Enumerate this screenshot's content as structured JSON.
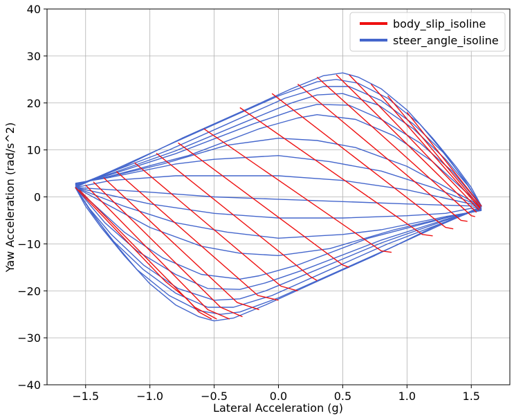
{
  "chart_data": {
    "type": "line",
    "title": "",
    "xlabel": "Lateral Acceleration (g)",
    "ylabel": "Yaw Acceleration (rad/s^2)",
    "xlim": [
      -1.8,
      1.8
    ],
    "ylim": [
      -40,
      40
    ],
    "xticks": [
      -1.5,
      -1.0,
      -0.5,
      0.0,
      0.5,
      1.0,
      1.5
    ],
    "xtick_labels": [
      "−1.5",
      "−1.0",
      "−0.5",
      "0.0",
      "0.5",
      "1.0",
      "1.5"
    ],
    "yticks": [
      -40,
      -30,
      -20,
      -10,
      0,
      10,
      20,
      30,
      40
    ],
    "ytick_labels": [
      "−40",
      "−30",
      "−20",
      "−10",
      "0",
      "10",
      "20",
      "30",
      "40"
    ],
    "grid": true,
    "legend": {
      "placement": "top-right",
      "entries": [
        {
          "name": "body_slip_isoline",
          "color": "#ee1111"
        },
        {
          "name": "steer_angle_isoline",
          "color": "#4466cc"
        }
      ]
    },
    "series": [
      {
        "name": "body_slip_isoline",
        "color": "#ee1111",
        "lines": [
          [
            [
              -1.58,
              2.0
            ],
            [
              -0.88,
              -18.0
            ],
            [
              -0.72,
              -21.5
            ],
            [
              -0.62,
              -24.5
            ],
            [
              -0.52,
              -26.0
            ]
          ],
          [
            [
              -1.55,
              1.5
            ],
            [
              -0.65,
              -23.5
            ],
            [
              -0.48,
              -26.0
            ]
          ],
          [
            [
              -1.5,
              2.5
            ],
            [
              -0.55,
              -24.0
            ],
            [
              -0.38,
              -26.0
            ]
          ],
          [
            [
              -1.44,
              3.2
            ],
            [
              -0.45,
              -23.5
            ],
            [
              -0.28,
              -25.5
            ]
          ],
          [
            [
              -1.36,
              4.1
            ],
            [
              -0.32,
              -22.5
            ],
            [
              -0.15,
              -24.0
            ]
          ],
          [
            [
              -1.26,
              5.4
            ],
            [
              -0.16,
              -21.0
            ],
            [
              0.0,
              -22.0
            ]
          ],
          [
            [
              -1.12,
              7.3
            ],
            [
              0.02,
              -19.0
            ],
            [
              0.15,
              -20.0
            ]
          ],
          [
            [
              -0.95,
              9.3
            ],
            [
              0.25,
              -17.0
            ],
            [
              0.3,
              -17.8
            ]
          ],
          [
            [
              -0.78,
              11.5
            ],
            [
              0.5,
              -14.5
            ],
            [
              0.55,
              -15.0
            ]
          ],
          [
            [
              -0.58,
              14.5
            ],
            [
              0.8,
              -11.5
            ],
            [
              0.88,
              -11.8
            ]
          ],
          [
            [
              -0.3,
              19.0
            ],
            [
              1.12,
              -8.0
            ],
            [
              1.2,
              -8.3
            ]
          ],
          [
            [
              -0.05,
              22.0
            ],
            [
              1.3,
              -6.5
            ],
            [
              1.36,
              -6.8
            ]
          ],
          [
            [
              0.15,
              24.0
            ],
            [
              1.42,
              -5.0
            ],
            [
              1.47,
              -5.2
            ]
          ],
          [
            [
              0.3,
              25.5
            ],
            [
              1.5,
              -4.0
            ],
            [
              1.53,
              -4.2
            ]
          ],
          [
            [
              0.45,
              26.0
            ],
            [
              1.54,
              -3.3
            ]
          ],
          [
            [
              0.55,
              26.0
            ],
            [
              1.56,
              -2.8
            ]
          ],
          [
            [
              0.72,
              24.0
            ],
            [
              1.57,
              -2.5
            ]
          ],
          [
            [
              0.85,
              21.5
            ],
            [
              1.57,
              -2.2
            ]
          ],
          [
            [
              1.0,
              18.0
            ],
            [
              1.58,
              -2.0
            ]
          ]
        ]
      },
      {
        "name": "steer_angle_isoline",
        "color": "#4466cc",
        "lines": [
          [
            [
              -1.58,
              2.0
            ],
            [
              -1.5,
              3.0
            ],
            [
              -1.2,
              6.5
            ],
            [
              -0.75,
              12.5
            ],
            [
              -0.3,
              18.0
            ],
            [
              0.1,
              23.0
            ],
            [
              0.35,
              25.8
            ],
            [
              0.5,
              26.4
            ],
            [
              0.62,
              25.5
            ],
            [
              0.8,
              23.0
            ],
            [
              1.0,
              18.5
            ],
            [
              1.2,
              12.5
            ],
            [
              1.38,
              6.5
            ],
            [
              1.5,
              2.0
            ],
            [
              1.58,
              -2.0
            ]
          ],
          [
            [
              -1.58,
              2.2
            ],
            [
              -1.3,
              5.5
            ],
            [
              -0.9,
              10.5
            ],
            [
              -0.45,
              16.0
            ],
            [
              0.0,
              21.5
            ],
            [
              0.3,
              24.5
            ],
            [
              0.45,
              25.0
            ],
            [
              0.62,
              24.2
            ],
            [
              0.85,
              21.0
            ],
            [
              1.1,
              15.5
            ],
            [
              1.3,
              9.0
            ],
            [
              1.46,
              3.0
            ],
            [
              1.58,
              -2.0
            ]
          ],
          [
            [
              -1.58,
              2.4
            ],
            [
              -1.3,
              5.3
            ],
            [
              -0.85,
              10.0
            ],
            [
              -0.4,
              15.5
            ],
            [
              0.05,
              21.0
            ],
            [
              0.35,
              23.5
            ],
            [
              0.55,
              23.5
            ],
            [
              0.8,
              20.5
            ],
            [
              1.05,
              15.5
            ],
            [
              1.28,
              9.5
            ],
            [
              1.45,
              3.5
            ],
            [
              1.58,
              -2.0
            ]
          ],
          [
            [
              -1.58,
              2.5
            ],
            [
              -1.3,
              5.0
            ],
            [
              -0.8,
              9.8
            ],
            [
              -0.3,
              15.5
            ],
            [
              0.1,
              20.0
            ],
            [
              0.3,
              21.7
            ],
            [
              0.5,
              22.0
            ],
            [
              0.78,
              19.5
            ],
            [
              1.05,
              14.5
            ],
            [
              1.3,
              8.0
            ],
            [
              1.47,
              2.5
            ],
            [
              1.58,
              -2.0
            ]
          ],
          [
            [
              -1.58,
              2.6
            ],
            [
              -1.3,
              4.8
            ],
            [
              -0.8,
              9.2
            ],
            [
              -0.2,
              15.5
            ],
            [
              0.1,
              18.3
            ],
            [
              0.3,
              19.7
            ],
            [
              0.55,
              19.5
            ],
            [
              0.8,
              16.5
            ],
            [
              1.1,
              11.5
            ],
            [
              1.35,
              5.5
            ],
            [
              1.58,
              -2.0
            ]
          ],
          [
            [
              -1.58,
              2.7
            ],
            [
              -1.3,
              4.5
            ],
            [
              -0.7,
              8.8
            ],
            [
              -0.15,
              14.5
            ],
            [
              0.15,
              16.8
            ],
            [
              0.3,
              17.5
            ],
            [
              0.6,
              16.5
            ],
            [
              0.9,
              13.0
            ],
            [
              1.2,
              7.5
            ],
            [
              1.58,
              -2.0
            ]
          ],
          [
            [
              -1.58,
              2.8
            ],
            [
              -1.3,
              4.4
            ],
            [
              -0.9,
              7.0
            ],
            [
              -0.4,
              11.0
            ],
            [
              0.0,
              12.5
            ],
            [
              0.3,
              12.0
            ],
            [
              0.6,
              10.5
            ],
            [
              1.0,
              6.5
            ],
            [
              1.58,
              -2.0
            ]
          ],
          [
            [
              -1.58,
              2.9
            ],
            [
              -1.3,
              4.2
            ],
            [
              -0.8,
              7.0
            ],
            [
              -0.5,
              8.0
            ],
            [
              0.0,
              8.8
            ],
            [
              0.4,
              7.5
            ],
            [
              0.8,
              5.5
            ],
            [
              1.2,
              2.0
            ],
            [
              1.58,
              -2.0
            ]
          ],
          [
            [
              -1.58,
              2.0
            ],
            [
              -1.3,
              3.5
            ],
            [
              -0.8,
              4.5
            ],
            [
              0.0,
              4.5
            ],
            [
              0.5,
              3.5
            ],
            [
              1.0,
              1.5
            ],
            [
              1.58,
              -2.0
            ]
          ],
          [
            [
              -1.58,
              2.0
            ],
            [
              -1.0,
              1.0
            ],
            [
              -0.5,
              0.0
            ],
            [
              0.0,
              -0.5
            ],
            [
              0.5,
              -1.0
            ],
            [
              1.0,
              -1.5
            ],
            [
              1.58,
              -2.0
            ]
          ],
          [
            [
              -1.58,
              2.0
            ],
            [
              -1.0,
              -1.5
            ],
            [
              -0.5,
              -3.5
            ],
            [
              0.0,
              -4.5
            ],
            [
              0.5,
              -4.5
            ],
            [
              1.0,
              -4.0
            ],
            [
              1.3,
              -3.5
            ],
            [
              1.58,
              -2.0
            ]
          ],
          [
            [
              -1.58,
              2.0
            ],
            [
              -1.2,
              -2.0
            ],
            [
              -0.8,
              -5.5
            ],
            [
              -0.4,
              -7.5
            ],
            [
              0.0,
              -8.8
            ],
            [
              0.5,
              -8.0
            ],
            [
              0.8,
              -7.0
            ],
            [
              1.3,
              -4.2
            ],
            [
              1.58,
              -2.9
            ]
          ],
          [
            [
              -1.58,
              2.0
            ],
            [
              -1.0,
              -6.5
            ],
            [
              -0.6,
              -10.5
            ],
            [
              -0.3,
              -12.0
            ],
            [
              0.0,
              -12.5
            ],
            [
              0.4,
              -11.0
            ],
            [
              0.9,
              -7.0
            ],
            [
              1.3,
              -4.4
            ],
            [
              1.58,
              -2.8
            ]
          ],
          [
            [
              -1.58,
              2.0
            ],
            [
              -1.2,
              -7.5
            ],
            [
              -0.9,
              -13.0
            ],
            [
              -0.6,
              -16.5
            ],
            [
              -0.3,
              -17.5
            ],
            [
              -0.15,
              -16.8
            ],
            [
              0.15,
              -14.5
            ],
            [
              0.7,
              -8.8
            ],
            [
              1.3,
              -4.5
            ],
            [
              1.58,
              -2.7
            ]
          ],
          [
            [
              -1.58,
              2.0
            ],
            [
              -1.35,
              -5.5
            ],
            [
              -1.1,
              -11.5
            ],
            [
              -0.8,
              -16.5
            ],
            [
              -0.55,
              -19.5
            ],
            [
              -0.3,
              -19.7
            ],
            [
              -0.1,
              -18.3
            ],
            [
              0.2,
              -15.5
            ],
            [
              0.8,
              -9.2
            ],
            [
              1.3,
              -4.8
            ],
            [
              1.58,
              -2.6
            ]
          ],
          [
            [
              -1.58,
              2.0
            ],
            [
              -1.47,
              -2.5
            ],
            [
              -1.3,
              -8.0
            ],
            [
              -1.05,
              -14.5
            ],
            [
              -0.78,
              -19.5
            ],
            [
              -0.5,
              -22.0
            ],
            [
              -0.3,
              -21.7
            ],
            [
              -0.1,
              -20.0
            ],
            [
              0.3,
              -15.5
            ],
            [
              0.8,
              -9.8
            ],
            [
              1.3,
              -5.0
            ],
            [
              1.58,
              -2.5
            ]
          ],
          [
            [
              -1.58,
              2.0
            ],
            [
              -1.45,
              -3.5
            ],
            [
              -1.28,
              -9.5
            ],
            [
              -1.05,
              -15.5
            ],
            [
              -0.8,
              -20.5
            ],
            [
              -0.55,
              -23.5
            ],
            [
              -0.35,
              -23.5
            ],
            [
              -0.05,
              -21.0
            ],
            [
              0.4,
              -15.5
            ],
            [
              0.85,
              -10.0
            ],
            [
              1.3,
              -5.3
            ],
            [
              1.58,
              -2.4
            ]
          ],
          [
            [
              -1.58,
              2.0
            ],
            [
              -1.46,
              -3.0
            ],
            [
              -1.3,
              -9.0
            ],
            [
              -1.1,
              -15.5
            ],
            [
              -0.85,
              -21.0
            ],
            [
              -0.62,
              -24.2
            ],
            [
              -0.45,
              -25.0
            ],
            [
              -0.3,
              -24.5
            ],
            [
              0.0,
              -21.5
            ],
            [
              0.45,
              -16.0
            ],
            [
              0.9,
              -10.5
            ],
            [
              1.3,
              -5.5
            ],
            [
              1.58,
              -2.2
            ]
          ],
          [
            [
              -1.58,
              2.0
            ],
            [
              -1.5,
              -2.0
            ],
            [
              -1.38,
              -6.5
            ],
            [
              -1.2,
              -12.5
            ],
            [
              -1.0,
              -18.5
            ],
            [
              -0.8,
              -23.0
            ],
            [
              -0.62,
              -25.5
            ],
            [
              -0.5,
              -26.4
            ],
            [
              -0.35,
              -25.8
            ],
            [
              -0.1,
              -23.0
            ],
            [
              0.3,
              -18.0
            ],
            [
              0.75,
              -12.5
            ],
            [
              1.2,
              -6.5
            ],
            [
              1.5,
              -3.0
            ],
            [
              1.58,
              -2.0
            ]
          ]
        ]
      }
    ]
  }
}
